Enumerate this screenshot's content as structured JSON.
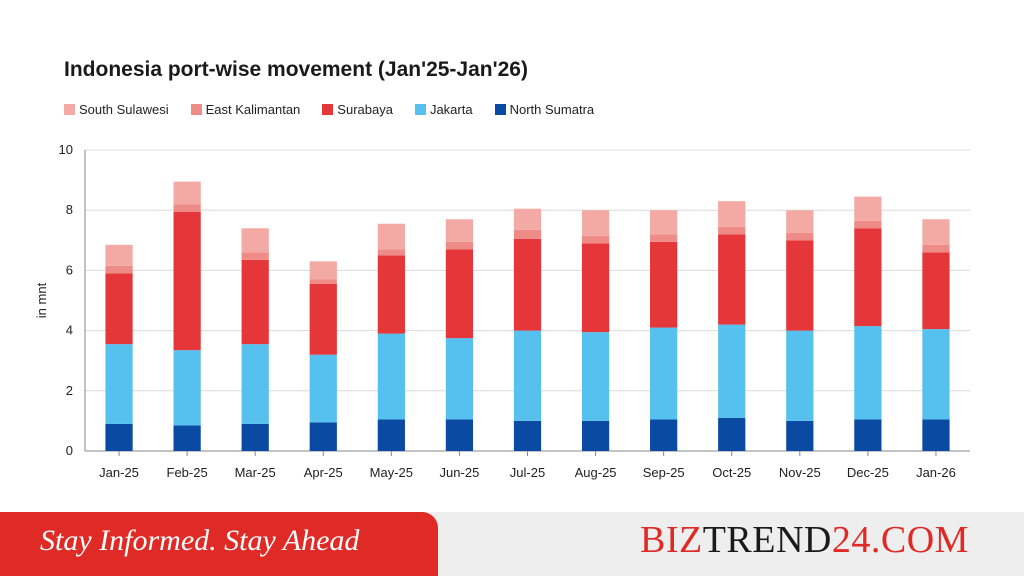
{
  "chart_data": {
    "type": "bar",
    "stacked": true,
    "title": "Indonesia port-wise movement (Jan'25-Jan'26)",
    "ylabel": "in mnt",
    "xlabel": "",
    "ylim": [
      0,
      10
    ],
    "yticks": [
      0,
      2,
      4,
      6,
      8,
      10
    ],
    "grid": true,
    "legend_position": "top",
    "categories": [
      "Jan-25",
      "Feb-25",
      "Mar-25",
      "Apr-25",
      "May-25",
      "Jun-25",
      "Jul-25",
      "Aug-25",
      "Sep-25",
      "Oct-25",
      "Nov-25",
      "Dec-25",
      "Jan-26"
    ],
    "series": [
      {
        "name": "North Sumatra",
        "color": "#0b4aa2",
        "values": [
          0.9,
          0.85,
          0.9,
          0.95,
          1.05,
          1.05,
          1.0,
          1.0,
          1.05,
          1.1,
          1.0,
          1.05,
          1.05
        ]
      },
      {
        "name": "Jakarta",
        "color": "#56c1ee",
        "values": [
          2.65,
          2.5,
          2.65,
          2.25,
          2.85,
          2.7,
          3.0,
          2.95,
          3.05,
          3.1,
          3.0,
          3.1,
          3.0
        ]
      },
      {
        "name": "Surabaya",
        "color": "#e5363a",
        "values": [
          2.35,
          4.6,
          2.8,
          2.35,
          2.6,
          2.95,
          3.05,
          2.95,
          2.85,
          3.0,
          3.0,
          3.25,
          2.55
        ]
      },
      {
        "name": "East Kalimantan",
        "color": "#ef8b87",
        "values": [
          0.25,
          0.25,
          0.25,
          0.15,
          0.2,
          0.25,
          0.3,
          0.25,
          0.25,
          0.25,
          0.25,
          0.25,
          0.25
        ]
      },
      {
        "name": "South Sulawesi",
        "color": "#f3a9a4",
        "values": [
          0.7,
          0.75,
          0.8,
          0.6,
          0.85,
          0.75,
          0.7,
          0.85,
          0.8,
          0.85,
          0.75,
          0.8,
          0.85
        ]
      }
    ],
    "legend_order": [
      "South Sulawesi",
      "East Kalimantan",
      "Surabaya",
      "Jakarta",
      "North Sumatra"
    ]
  },
  "footer": {
    "tagline": "Stay Informed. Stay Ahead",
    "brand_red": "BIZ",
    "brand_dark": "TREND",
    "brand_suffix": "24.COM",
    "tagline_bg": "#e02a26"
  }
}
